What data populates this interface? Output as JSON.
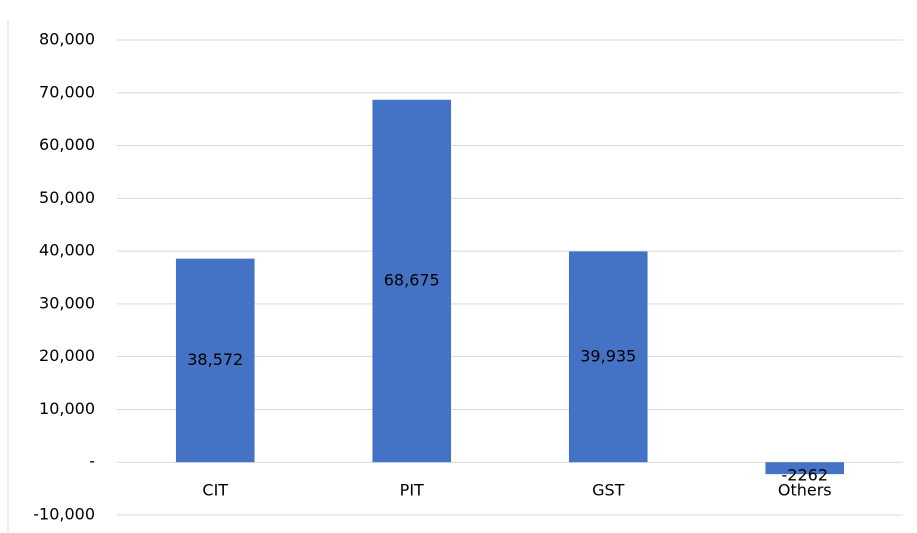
{
  "chart_data": {
    "type": "bar",
    "categories": [
      "CIT",
      "PIT",
      "GST",
      "Others"
    ],
    "values": [
      38572,
      68675,
      39935,
      -2262
    ],
    "value_labels": [
      "38,572",
      "68,675",
      "39,935",
      "-2262"
    ],
    "color": "#4472c4",
    "ylim": [
      -10000,
      80000
    ],
    "yticks": [
      {
        "value": -10000,
        "label": "-10,000"
      },
      {
        "value": 0,
        "label": "-"
      },
      {
        "value": 10000,
        "label": "10,000"
      },
      {
        "value": 20000,
        "label": "20,000"
      },
      {
        "value": 30000,
        "label": "30,000"
      },
      {
        "value": 40000,
        "label": "40,000"
      },
      {
        "value": 50000,
        "label": "50,000"
      },
      {
        "value": 60000,
        "label": "60,000"
      },
      {
        "value": 70000,
        "label": "70,000"
      },
      {
        "value": 80000,
        "label": "80,000"
      }
    ],
    "grid": true
  }
}
